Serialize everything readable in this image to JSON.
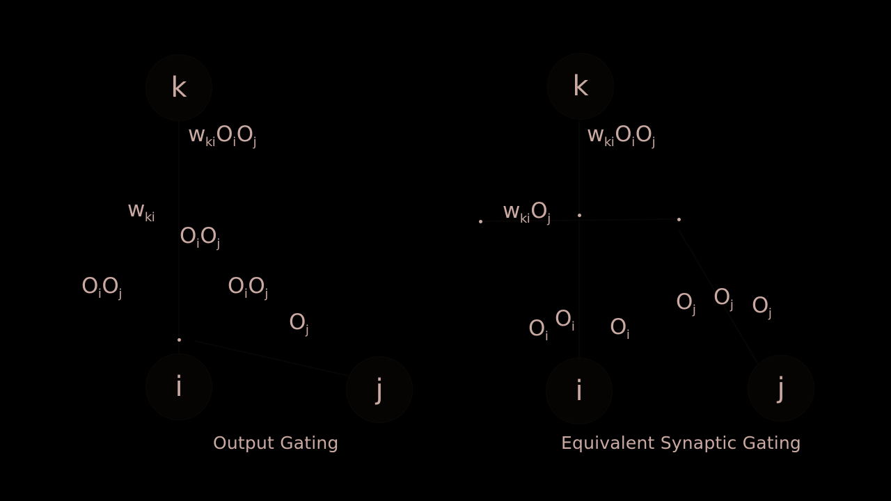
{
  "colors": {
    "background": "#000000",
    "text": "#c9a9a2",
    "node_fill": "#050403",
    "node_stroke": "#0b0907"
  },
  "left_diagram": {
    "caption": "Output Gating",
    "nodes": {
      "k": "k",
      "i": "i",
      "j": "j"
    },
    "labels": {
      "top": {
        "w": "w",
        "w_sub": "ki",
        "o1": "O",
        "o1_sub": "i",
        "o2": "O",
        "o2_sub": "j"
      },
      "weight": {
        "w": "w",
        "w_sub": "ki"
      },
      "mid_product": {
        "o1": "O",
        "o1_sub": "i",
        "o2": "O",
        "o2_sub": "j"
      },
      "left_product": {
        "o1": "O",
        "o1_sub": "i",
        "o2": "O",
        "o2_sub": "j"
      },
      "center_product": {
        "o1": "O",
        "o1_sub": "i",
        "o2": "O",
        "o2_sub": "j"
      },
      "j_output": {
        "o": "O",
        "o_sub": "j"
      }
    }
  },
  "right_diagram": {
    "caption": "Equivalent Synaptic Gating",
    "nodes": {
      "k": "k",
      "i": "i",
      "j": "j"
    },
    "labels": {
      "top": {
        "w": "w",
        "w_sub": "ki",
        "o1": "O",
        "o1_sub": "i",
        "o2": "O",
        "o2_sub": "j"
      },
      "gated_weight": {
        "w": "w",
        "w_sub": "ki",
        "o": "O",
        "o_sub": "j"
      },
      "oi_left": {
        "o": "O",
        "o_sub": "i"
      },
      "oi_mid": {
        "o": "O",
        "o_sub": "i"
      },
      "oi_right": {
        "o": "O",
        "o_sub": "i"
      },
      "oj_1": {
        "o": "O",
        "o_sub": "j"
      },
      "oj_2": {
        "o": "O",
        "o_sub": "j"
      },
      "oj_3": {
        "o": "O",
        "o_sub": "j"
      }
    }
  }
}
